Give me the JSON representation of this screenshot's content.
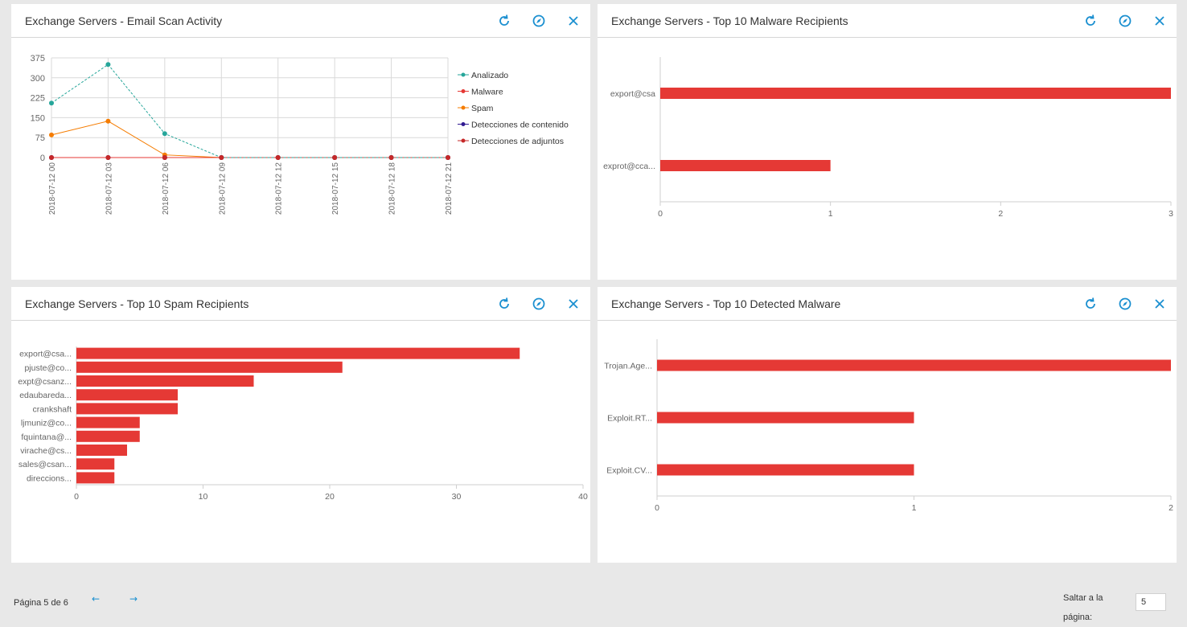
{
  "panels": {
    "scan_activity": {
      "title": "Exchange Servers - Email Scan Activity"
    },
    "malware_recipients": {
      "title": "Exchange Servers - Top 10 Malware Recipients"
    },
    "spam_recipients": {
      "title": "Exchange Servers - Top 10 Spam Recipients"
    },
    "detected_malware": {
      "title": "Exchange Servers - Top 10 Detected Malware"
    }
  },
  "icons": {
    "refresh": "refresh-icon",
    "settings": "compass-icon",
    "close": "close-icon"
  },
  "colors": {
    "accent": "#1a8fd0",
    "bar": "#e53935"
  },
  "chart_data": [
    {
      "type": "line",
      "id": "scan_activity",
      "title": "Exchange Servers - Email Scan Activity",
      "x": [
        "2018-07-12 00",
        "2018-07-12 03",
        "2018-07-12 06",
        "2018-07-12 09",
        "2018-07-12 12",
        "2018-07-12 15",
        "2018-07-12 18",
        "2018-07-12 21"
      ],
      "yticks": [
        0,
        75,
        150,
        225,
        300,
        375
      ],
      "ylim": [
        0,
        375
      ],
      "grid": true,
      "legend": "right",
      "series": [
        {
          "name": "Analizado",
          "color": "#26a69a",
          "values": [
            205,
            350,
            90,
            0,
            0,
            0,
            0,
            0
          ]
        },
        {
          "name": "Malware",
          "color": "#e53935",
          "values": [
            0,
            0,
            0,
            0,
            0,
            0,
            0,
            0
          ]
        },
        {
          "name": "Spam",
          "color": "#f57c00",
          "values": [
            85,
            137,
            10,
            0,
            0,
            0,
            0,
            0
          ]
        },
        {
          "name": "Detecciones de contenido",
          "color": "#311b92",
          "values": [
            0,
            0,
            0,
            0,
            0,
            0,
            0,
            0
          ]
        },
        {
          "name": "Detecciones de adjuntos",
          "color": "#c62828",
          "values": [
            0,
            0,
            0,
            0,
            0,
            0,
            0,
            0
          ]
        }
      ]
    },
    {
      "type": "bar",
      "orientation": "horizontal",
      "id": "malware_recipients",
      "title": "Exchange Servers - Top 10 Malware Recipients",
      "categories": [
        "export@csa",
        "exprot@cca..."
      ],
      "values": [
        3,
        1
      ],
      "xticks": [
        0,
        1,
        2,
        3
      ],
      "xlim": [
        0,
        3
      ]
    },
    {
      "type": "bar",
      "orientation": "horizontal",
      "id": "spam_recipients",
      "title": "Exchange Servers - Top 10 Spam Recipients",
      "categories": [
        "export@csa...",
        "pjuste@co...",
        "expt@csanz...",
        "edaubareda...",
        "crankshaft",
        "ljmuniz@co...",
        "fquintana@...",
        "virache@cs...",
        "sales@csan...",
        "direccions..."
      ],
      "values": [
        35,
        21,
        14,
        8,
        8,
        5,
        5,
        4,
        3,
        3
      ],
      "xticks": [
        0,
        10,
        20,
        30,
        40
      ],
      "xlim": [
        0,
        40
      ]
    },
    {
      "type": "bar",
      "orientation": "horizontal",
      "id": "detected_malware",
      "title": "Exchange Servers - Top 10 Detected Malware",
      "categories": [
        "Trojan.Age...",
        "Exploit.RT...",
        "Exploit.CV..."
      ],
      "values": [
        2,
        1,
        1
      ],
      "xticks": [
        0,
        1,
        2
      ],
      "xlim": [
        0,
        2
      ]
    }
  ],
  "footer": {
    "page_label": "Página 5 de 6",
    "prev_arrow": "←",
    "next_arrow": "→",
    "jump_label_line1": "Saltar a la",
    "jump_label_line2": "página:",
    "jump_value": "5"
  }
}
